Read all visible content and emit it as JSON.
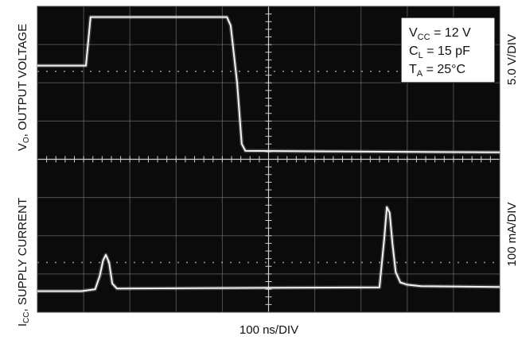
{
  "chart_data": {
    "type": "line",
    "x_unit_label": "100 ns/DIV",
    "left_labels": {
      "top": "V",
      "top_sub": "O",
      "top_rest": ", OUTPUT VOLTAGE",
      "bottom": "I",
      "bottom_sub": "CC",
      "bottom_rest": ", SUPPLY CURRENT"
    },
    "right_labels": {
      "top": "5.0 V/DIV",
      "bottom": "100 mA/DIV"
    },
    "conditions": [
      {
        "main": "V",
        "sub": "CC",
        "rest": " = 12 V"
      },
      {
        "main": "C",
        "sub": "L",
        "rest": " = 15 pF"
      },
      {
        "main": "T",
        "sub": "A",
        "rest": " = 25°C"
      }
    ],
    "grid": {
      "x_divisions": 10,
      "y_divisions": 8
    },
    "series": [
      {
        "x": [
          0.0,
          1.05,
          1.15,
          4.1,
          4.18,
          4.32,
          4.42,
          4.5,
          10.0
        ],
        "y": [
          6.45,
          6.45,
          7.72,
          7.72,
          7.5,
          6.0,
          4.4,
          4.22,
          4.18
        ]
      },
      {
        "x": [
          0.0,
          0.95,
          1.25,
          1.35,
          1.42,
          1.48,
          1.55,
          1.62,
          1.72,
          7.4,
          7.5,
          7.56,
          7.62,
          7.68,
          7.75,
          7.85,
          8.0,
          8.3,
          10.0
        ],
        "y": [
          0.55,
          0.55,
          0.6,
          0.95,
          1.35,
          1.5,
          1.3,
          0.75,
          0.62,
          0.65,
          1.9,
          2.75,
          2.6,
          1.8,
          1.05,
          0.78,
          0.72,
          0.68,
          0.66
        ]
      }
    ]
  }
}
